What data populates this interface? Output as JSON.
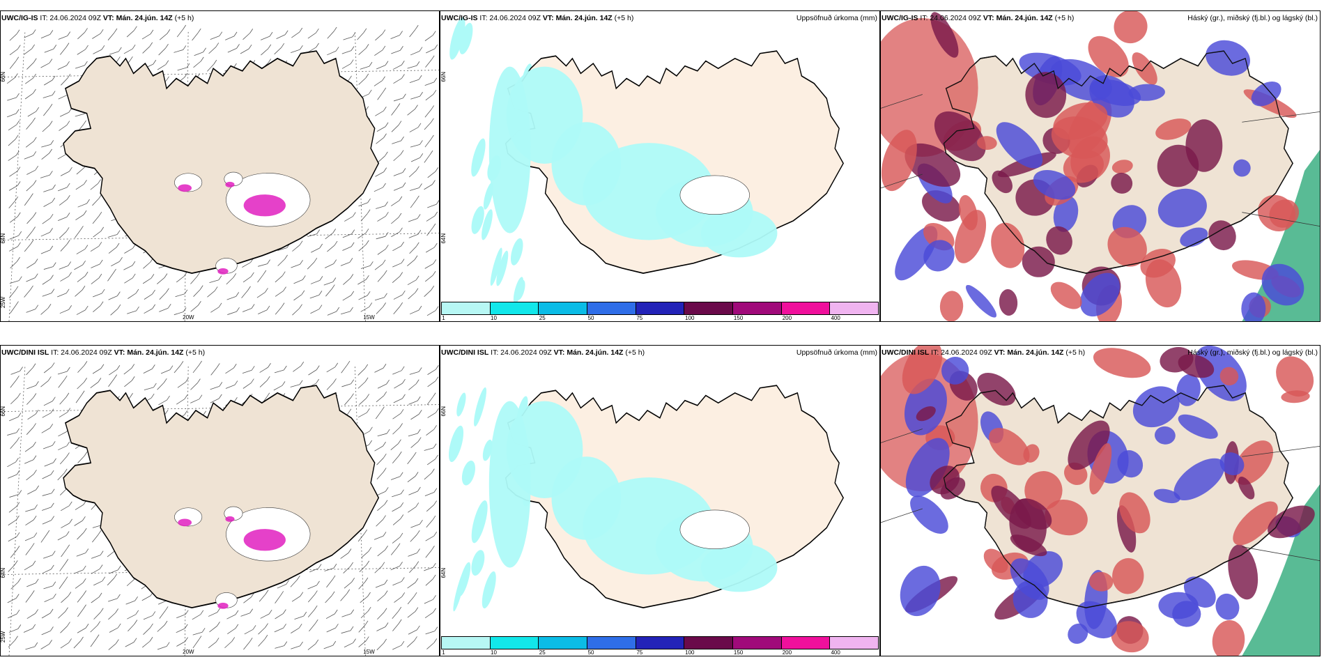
{
  "rows": [
    {
      "model_label": "UWC/IG-IS",
      "it_text": "IT: 24.06.2024 09Z",
      "vt_label": "VT: Mán. 24.jún. 14Z",
      "offset": "(+5 h)"
    },
    {
      "model_label": "UWC/DINI ISL",
      "it_text": "IT: 24.06.2024 09Z",
      "vt_label": "VT: Mán. 24.jún. 14Z",
      "offset": "(+5 h)"
    }
  ],
  "precip_title": "Uppsöfnuð úrkoma (mm)",
  "cloud_title": "Háský (gr.), miðský (fj.bl.) og lágský (bl.)",
  "colorbar": {
    "colors": [
      "#b7f7f4",
      "#12e7ea",
      "#0bbce6",
      "#2f6ee8",
      "#2323b8",
      "#6a0a4a",
      "#a00a7a",
      "#f0109c",
      "#f0b4f0"
    ],
    "labels": [
      "1",
      "10",
      "25",
      "50",
      "75",
      "100",
      "150",
      "200",
      "400"
    ]
  },
  "wind_axis_labels": {
    "lat66": "66N",
    "lat64": "64N",
    "lon25": "25W",
    "lon20": "20W",
    "lon15": "15W"
  },
  "precip_axis_labels": {
    "lat66": "66N",
    "lat64": "64N"
  },
  "colors": {
    "land": "#efe3d4",
    "land_precip": "#fcefe2",
    "coast": "#000000",
    "magenta": "#e020c0",
    "precip_light": "#aefaf8",
    "cloud_high": "#7a1a4a",
    "cloud_mid": "#4a4ad8",
    "cloud_low": "#d85858",
    "sea_green": "#2faa7a"
  }
}
